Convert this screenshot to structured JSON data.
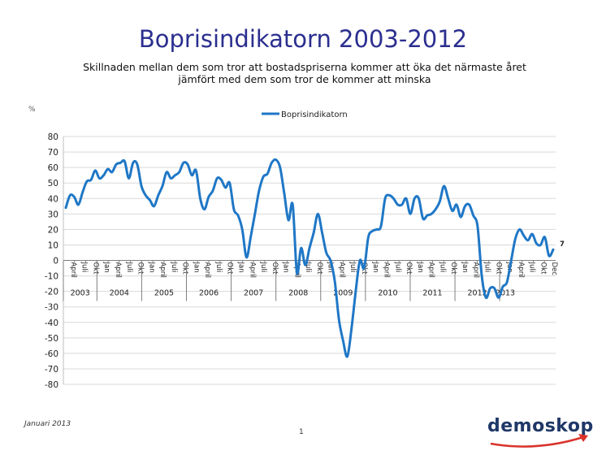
{
  "title": "Boprisindikatorn 2003-2012",
  "subtitle_line1": "Skillnaden mellan dem som tror att bostadspriserna kommer att öka det närmaste året",
  "subtitle_line2": "jämfört med dem som tror de kommer att minska",
  "footer": {
    "date": "Januari 2013",
    "page": "1",
    "logo": "demoskop"
  },
  "colors": {
    "title": "#2b2f8f",
    "series": "#1f77c6",
    "logo": "#1f3868",
    "logo_swoosh": "#d9332b"
  },
  "chart_data": {
    "type": "line",
    "ylabel": "%",
    "ylim": [
      -80,
      80
    ],
    "yticks": [
      80,
      70,
      60,
      50,
      40,
      30,
      20,
      10,
      0,
      -10,
      -20,
      -30,
      -40,
      -50,
      -60,
      -70,
      -80
    ],
    "legend": {
      "position": "top-center",
      "entries": [
        "Boprisindikatorn"
      ]
    },
    "grid": true,
    "years": [
      "2003",
      "2004",
      "2005",
      "2006",
      "2007",
      "2008",
      "2009",
      "2010",
      "2011",
      "2012",
      "2013"
    ],
    "month_labels": [
      "April",
      "Juli",
      "Okt",
      "Jan",
      "April",
      "Juli",
      "Okt",
      "Jan",
      "April",
      "Juli",
      "Okt",
      "Jan",
      "April",
      "Juli",
      "Okt",
      "Jan",
      "April",
      "Juli",
      "Okt",
      "Jan",
      "April",
      "Juli",
      "Okt",
      "Jan",
      "April",
      "Juli",
      "Okt",
      "Jan",
      "April",
      "Juli",
      "Okt",
      "Jan",
      "April",
      "Juli",
      "Okt",
      "Jan",
      "April",
      "Juli",
      "Okt",
      "Jan",
      "April",
      "Juli",
      "Okt",
      "Dec"
    ],
    "series": [
      {
        "name": "Boprisindikatorn",
        "values": [
          34,
          42,
          41,
          36,
          44,
          51,
          52,
          58,
          53,
          55,
          59,
          57,
          62,
          63,
          64,
          53,
          63,
          62,
          48,
          42,
          39,
          35,
          42,
          48,
          57,
          53,
          55,
          57,
          63,
          62,
          55,
          58,
          40,
          33,
          41,
          45,
          53,
          52,
          47,
          50,
          33,
          29,
          20,
          2,
          15,
          30,
          45,
          54,
          56,
          63,
          65,
          60,
          43,
          26,
          36,
          -8,
          8,
          -3,
          8,
          18,
          30,
          18,
          5,
          0,
          -13,
          -38,
          -52,
          -62,
          -44,
          -20,
          0,
          -5,
          15,
          19,
          20,
          22,
          40,
          42,
          40,
          36,
          36,
          40,
          30,
          40,
          40,
          27,
          29,
          30,
          33,
          38,
          48,
          40,
          32,
          36,
          28,
          35,
          36,
          29,
          22,
          -10,
          -24,
          -18,
          -18,
          -24,
          -17,
          -14,
          0,
          14,
          20,
          16,
          13,
          17,
          11,
          10,
          15,
          3,
          7
        ],
        "last_value_label": "7"
      }
    ]
  }
}
